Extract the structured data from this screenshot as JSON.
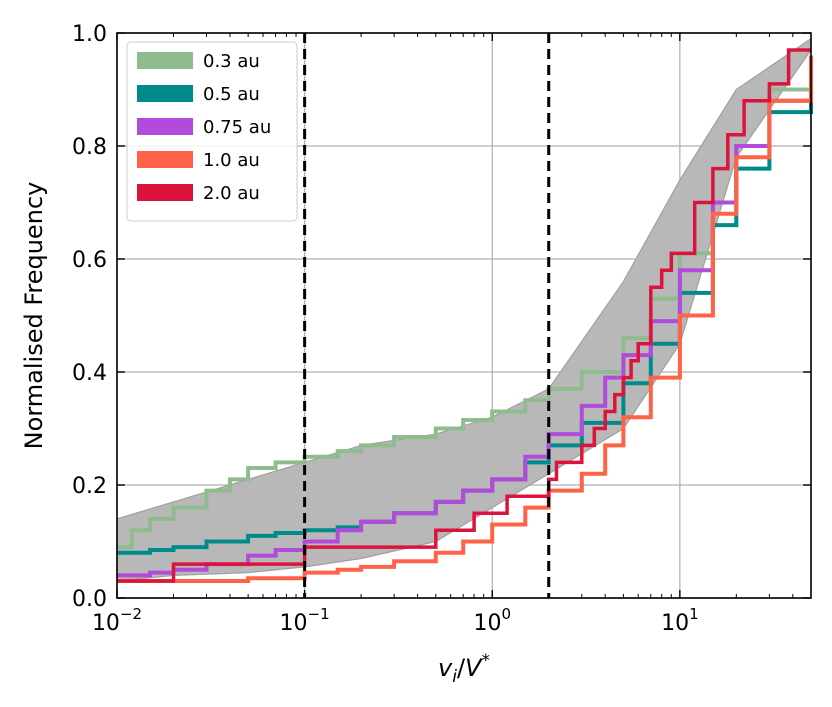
{
  "chart_data": {
    "type": "line",
    "title": "",
    "xlabel": "v_i/V*",
    "ylabel": "Normalised Frequency",
    "xscale": "log",
    "xlim": [
      0.01,
      50
    ],
    "ylim": [
      0.0,
      1.0
    ],
    "grid": true,
    "legend_position": "top-left",
    "x_ticks": [
      {
        "value": 0.01,
        "base": "10",
        "exp": "−2"
      },
      {
        "value": 0.1,
        "base": "10",
        "exp": "−1"
      },
      {
        "value": 1,
        "base": "10",
        "exp": "0"
      },
      {
        "value": 10,
        "base": "10",
        "exp": "1"
      }
    ],
    "y_ticks": [
      {
        "value": 0.0,
        "label": "0.0"
      },
      {
        "value": 0.2,
        "label": "0.2"
      },
      {
        "value": 0.4,
        "label": "0.4"
      },
      {
        "value": 0.6,
        "label": "0.6"
      },
      {
        "value": 0.8,
        "label": "0.8"
      },
      {
        "value": 1.0,
        "label": "1.0"
      }
    ],
    "vertical_lines": [
      0.1,
      2.0
    ],
    "band": {
      "color": "#b8b8b8",
      "x": [
        0.01,
        0.02,
        0.05,
        0.1,
        0.2,
        0.5,
        1,
        2,
        5,
        10,
        20,
        50
      ],
      "lower": [
        0.03,
        0.04,
        0.045,
        0.055,
        0.07,
        0.1,
        0.16,
        0.22,
        0.3,
        0.45,
        0.78,
        0.97
      ],
      "upper": [
        0.14,
        0.17,
        0.21,
        0.24,
        0.27,
        0.29,
        0.32,
        0.37,
        0.56,
        0.74,
        0.9,
        0.99
      ]
    },
    "series": [
      {
        "name": "0.3 au",
        "color": "#8fbc8f",
        "x": [
          0.01,
          0.012,
          0.015,
          0.02,
          0.03,
          0.04,
          0.05,
          0.07,
          0.1,
          0.15,
          0.2,
          0.3,
          0.5,
          0.7,
          1,
          1.5,
          2,
          3,
          5,
          7,
          10,
          15,
          20,
          30,
          50
        ],
        "y": [
          0.09,
          0.12,
          0.14,
          0.16,
          0.19,
          0.21,
          0.23,
          0.24,
          0.25,
          0.26,
          0.27,
          0.285,
          0.3,
          0.315,
          0.33,
          0.35,
          0.37,
          0.4,
          0.46,
          0.53,
          0.61,
          0.7,
          0.8,
          0.9,
          0.96
        ]
      },
      {
        "name": "0.5 au",
        "color": "#008b8b",
        "x": [
          0.01,
          0.015,
          0.02,
          0.03,
          0.05,
          0.07,
          0.1,
          0.15,
          0.2,
          0.3,
          0.5,
          0.7,
          1,
          1.5,
          2,
          3,
          5,
          7,
          10,
          15,
          20,
          30,
          50
        ],
        "y": [
          0.08,
          0.085,
          0.09,
          0.1,
          0.11,
          0.115,
          0.12,
          0.125,
          0.135,
          0.15,
          0.17,
          0.19,
          0.21,
          0.24,
          0.27,
          0.31,
          0.38,
          0.45,
          0.54,
          0.66,
          0.76,
          0.86,
          0.95
        ]
      },
      {
        "name": "0.75 au",
        "color": "#b24bdb",
        "x": [
          0.01,
          0.015,
          0.02,
          0.03,
          0.05,
          0.07,
          0.1,
          0.15,
          0.2,
          0.3,
          0.5,
          0.7,
          1,
          1.5,
          2,
          3,
          4,
          5,
          7,
          10,
          15,
          20,
          30,
          50
        ],
        "y": [
          0.04,
          0.045,
          0.05,
          0.06,
          0.075,
          0.085,
          0.1,
          0.12,
          0.135,
          0.15,
          0.17,
          0.19,
          0.21,
          0.25,
          0.29,
          0.34,
          0.39,
          0.43,
          0.49,
          0.58,
          0.7,
          0.8,
          0.88,
          0.96
        ]
      },
      {
        "name": "1.0 au",
        "color": "#ff6347",
        "x": [
          0.01,
          0.02,
          0.05,
          0.1,
          0.15,
          0.2,
          0.3,
          0.5,
          0.7,
          1,
          1.5,
          2,
          3,
          4,
          5,
          7,
          10,
          15,
          20,
          30,
          50
        ],
        "y": [
          0.03,
          0.03,
          0.035,
          0.045,
          0.05,
          0.055,
          0.065,
          0.08,
          0.1,
          0.13,
          0.16,
          0.19,
          0.22,
          0.27,
          0.32,
          0.39,
          0.5,
          0.68,
          0.78,
          0.88,
          0.96
        ]
      },
      {
        "name": "2.0 au",
        "color": "#dc143c",
        "x": [
          0.01,
          0.02,
          0.1,
          0.5,
          0.5,
          0.8,
          0.8,
          1.2,
          1.8,
          2.0,
          2.2,
          3.0,
          3.5,
          4.0,
          4.5,
          5.0,
          5.5,
          6.0,
          7.0,
          8.0,
          9.0,
          12.0,
          15.0,
          18.0,
          22.0,
          30.0,
          38.0,
          50.0
        ],
        "y": [
          0.03,
          0.06,
          0.09,
          0.09,
          0.12,
          0.12,
          0.15,
          0.18,
          0.18,
          0.21,
          0.24,
          0.27,
          0.3,
          0.33,
          0.36,
          0.39,
          0.42,
          0.45,
          0.55,
          0.58,
          0.61,
          0.7,
          0.76,
          0.82,
          0.88,
          0.91,
          0.97,
          0.97
        ]
      }
    ]
  }
}
